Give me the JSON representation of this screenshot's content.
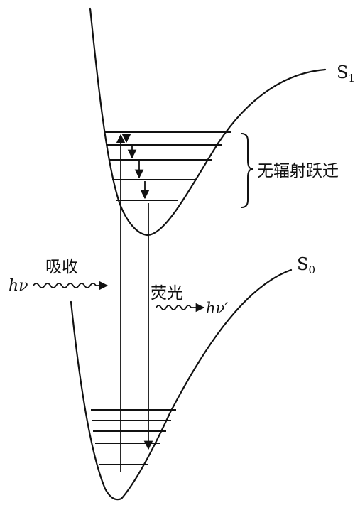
{
  "states": {
    "excited": {
      "symbol": "S",
      "subscript": "1"
    },
    "ground": {
      "symbol": "S",
      "subscript": "0"
    }
  },
  "labels": {
    "absorption": "吸收",
    "absorption_photon": "hν",
    "fluorescence": "荧光",
    "fluorescence_photon": "hν′",
    "nonradiative": "无辐射跃迁"
  },
  "colors": {
    "ink": "#111111",
    "background": "#ffffff"
  }
}
